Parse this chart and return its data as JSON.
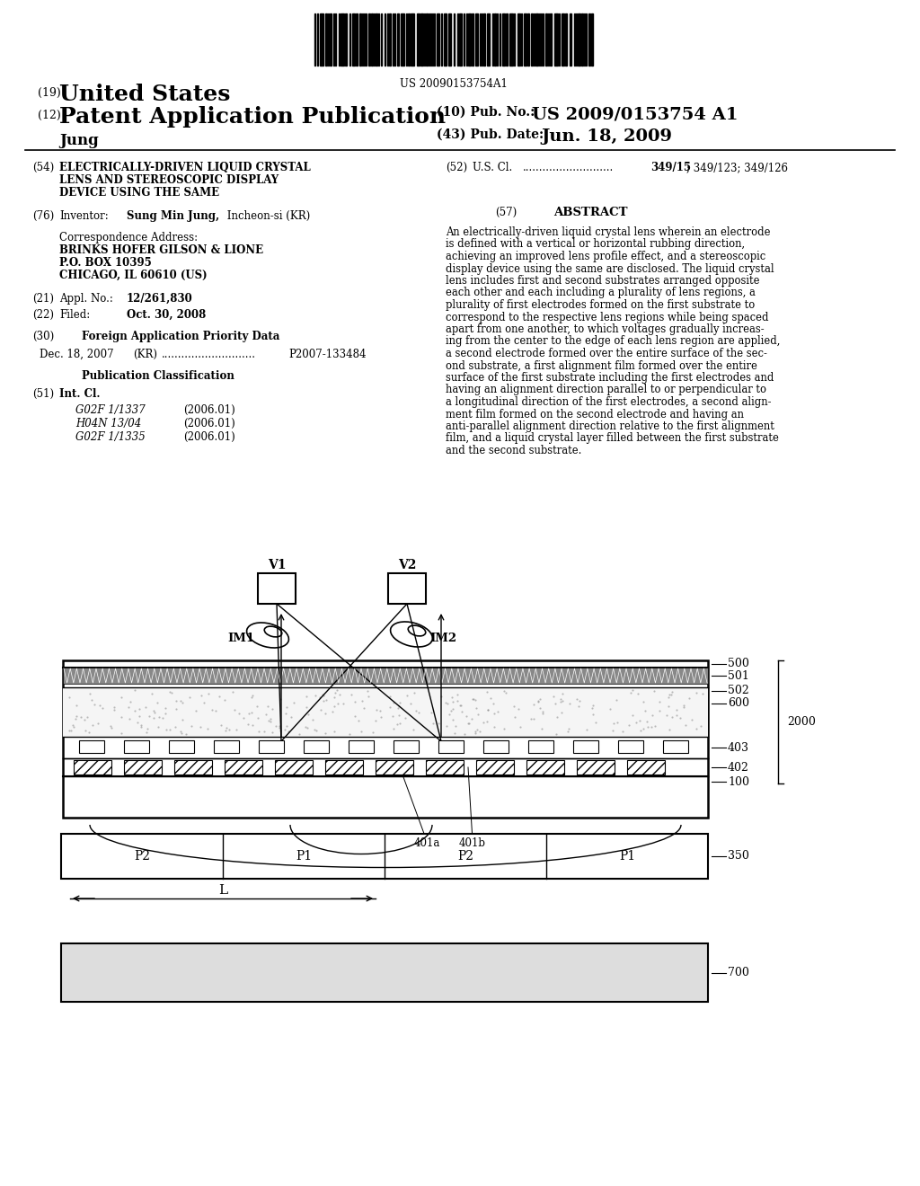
{
  "bg_color": "#ffffff",
  "barcode_text": "US 20090153754A1",
  "pub_no": "US 2009/0153754 A1",
  "pub_date": "Jun. 18, 2009",
  "country": "United States",
  "pub_type": "Patent Application Publication",
  "inventor_last": "Jung",
  "title_lines": [
    "ELECTRICALLY-DRIVEN LIQUID CRYSTAL",
    "LENS AND STEREOSCOPIC DISPLAY",
    "DEVICE USING THE SAME"
  ],
  "inventor_full": "Sung Min Jung, Incheon-si (KR)",
  "corr_lines": [
    "BRINKS HOFER GILSON & LIONE",
    "P.O. BOX 10395",
    "CHICAGO, IL 60610 (US)"
  ],
  "appl_no": "12/261,830",
  "filed_date": "Oct. 30, 2008",
  "fapd_date": "Dec. 18, 2007",
  "fapd_country": "(KR)",
  "fapd_num": "P2007-133484",
  "intcl": [
    [
      "G02F 1/1337",
      "(2006.01)"
    ],
    [
      "H04N 13/04",
      "(2006.01)"
    ],
    [
      "G02F 1/1335",
      "(2006.01)"
    ]
  ],
  "uscl_val": "349/15",
  "uscl_rest": "; 349/123; 349/126",
  "abstract_lines": [
    "An electrically-driven liquid crystal lens wherein an electrode",
    "is defined with a vertical or horizontal rubbing direction,",
    "achieving an improved lens profile effect, and a stereoscopic",
    "display device using the same are disclosed. The liquid crystal",
    "lens includes first and second substrates arranged opposite",
    "each other and each including a plurality of lens regions, a",
    "plurality of first electrodes formed on the first substrate to",
    "correspond to the respective lens regions while being spaced",
    "apart from one another, to which voltages gradually increas-",
    "ing from the center to the edge of each lens region are applied,",
    "a second electrode formed over the entire surface of the sec-",
    "ond substrate, a first alignment film formed over the entire",
    "surface of the first substrate including the first electrodes and",
    "having an alignment direction parallel to or perpendicular to",
    "a longitudinal direction of the first electrodes, a second align-",
    "ment film formed on the second electrode and having an",
    "anti-parallel alignment direction relative to the first alignment",
    "film, and a liquid crystal layer filled between the first substrate",
    "and the second substrate."
  ]
}
